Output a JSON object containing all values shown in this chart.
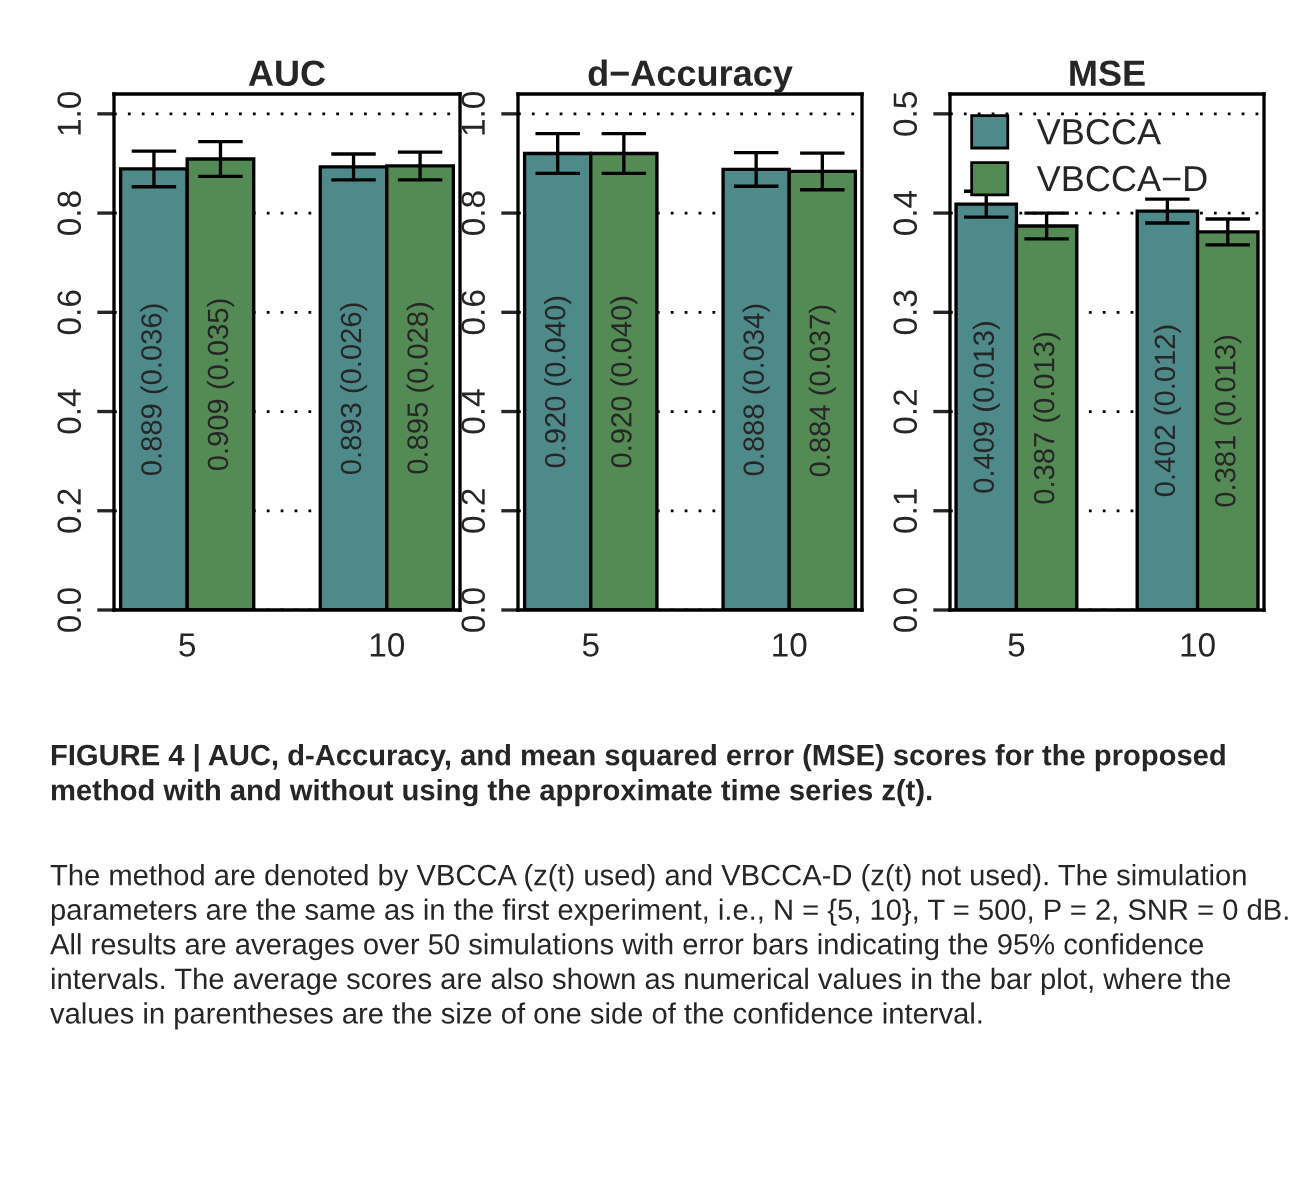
{
  "chart_data": [
    {
      "type": "bar",
      "title": "AUC",
      "categories": [
        "5",
        "10"
      ],
      "series": [
        {
          "color": "#4f8a8b",
          "values": [
            0.889,
            0.893
          ],
          "errors": [
            0.036,
            0.026
          ],
          "value_labels": [
            "0.889 (0.036)",
            "0.893 (0.026)"
          ]
        },
        {
          "color": "#548b54",
          "values": [
            0.909,
            0.895
          ],
          "errors": [
            0.035,
            0.028
          ],
          "value_labels": [
            "0.909 (0.035)",
            "0.895 (0.028)"
          ]
        }
      ],
      "ylim": [
        0,
        1.04
      ],
      "yticks": [
        {
          "value": 0,
          "label": "0.0"
        },
        {
          "value": 0.2,
          "label": "0.2"
        },
        {
          "value": 0.4,
          "label": "0.4"
        },
        {
          "value": 0.6,
          "label": "0.6"
        },
        {
          "value": 0.8,
          "label": "0.8"
        },
        {
          "value": 1.0,
          "label": "1.0"
        }
      ],
      "grid": "y",
      "legend": false,
      "annotations": [
        "FIGURE 4 | AUC, d-Accuracy, and mean squared error (MSE) scores for the proposed method with and without using the approximate time series z(t).",
        "The method are denoted by VBCCA (z(t) used) and VBCCA-D (z(t) not used). The simulation parameters are the same as in the first experiment, i.e., N = {5, 10}, T = 500, P = 2, SNR = 0 dB. All results are averages over 50 simulations with error bars indicating the 95% confidence intervals. The average scores are also shown as numerical values in the bar plot, where the values in parentheses are the size of one side of the confidence interval."
      ]
    },
    {
      "type": "bar",
      "title": "d−Accuracy",
      "categories": [
        "5",
        "10"
      ],
      "series": [
        {
          "color": "#4f8a8b",
          "values": [
            0.92,
            0.888
          ],
          "errors": [
            0.04,
            0.034
          ],
          "value_labels": [
            "0.920 (0.040)",
            "0.888 (0.034)"
          ]
        },
        {
          "color": "#548b54",
          "values": [
            0.92,
            0.884
          ],
          "errors": [
            0.04,
            0.037
          ],
          "value_labels": [
            "0.920 (0.040)",
            "0.884 (0.037)"
          ]
        }
      ],
      "ylim": [
        0,
        1.04
      ],
      "yticks": [
        {
          "value": 0,
          "label": "0.0"
        },
        {
          "value": 0.2,
          "label": "0.2"
        },
        {
          "value": 0.4,
          "label": "0.4"
        },
        {
          "value": 0.6,
          "label": "0.6"
        },
        {
          "value": 0.8,
          "label": "0.8"
        },
        {
          "value": 1.0,
          "label": "1.0"
        }
      ],
      "grid": "y",
      "legend": false
    },
    {
      "type": "bar",
      "title": "MSE",
      "categories": [
        "5",
        "10"
      ],
      "series": [
        {
          "name": "VBCCA",
          "color": "#4f8a8b",
          "values": [
            0.409,
            0.402
          ],
          "errors": [
            0.013,
            0.012
          ],
          "value_labels": [
            "0.409 (0.013)",
            "0.402 (0.012)"
          ]
        },
        {
          "name": "VBCCA−D",
          "color": "#548b54",
          "values": [
            0.387,
            0.381
          ],
          "errors": [
            0.013,
            0.013
          ],
          "value_labels": [
            "0.387 (0.013)",
            "0.381 (0.013)"
          ]
        }
      ],
      "ylim": [
        0,
        0.52
      ],
      "yticks": [
        {
          "value": 0,
          "label": "0.0"
        },
        {
          "value": 0.1,
          "label": "0.1"
        },
        {
          "value": 0.2,
          "label": "0.2"
        },
        {
          "value": 0.3,
          "label": "0.3"
        },
        {
          "value": 0.4,
          "label": "0.4"
        },
        {
          "value": 0.5,
          "label": "0.5"
        }
      ],
      "grid": "y",
      "legend": "top left"
    }
  ]
}
